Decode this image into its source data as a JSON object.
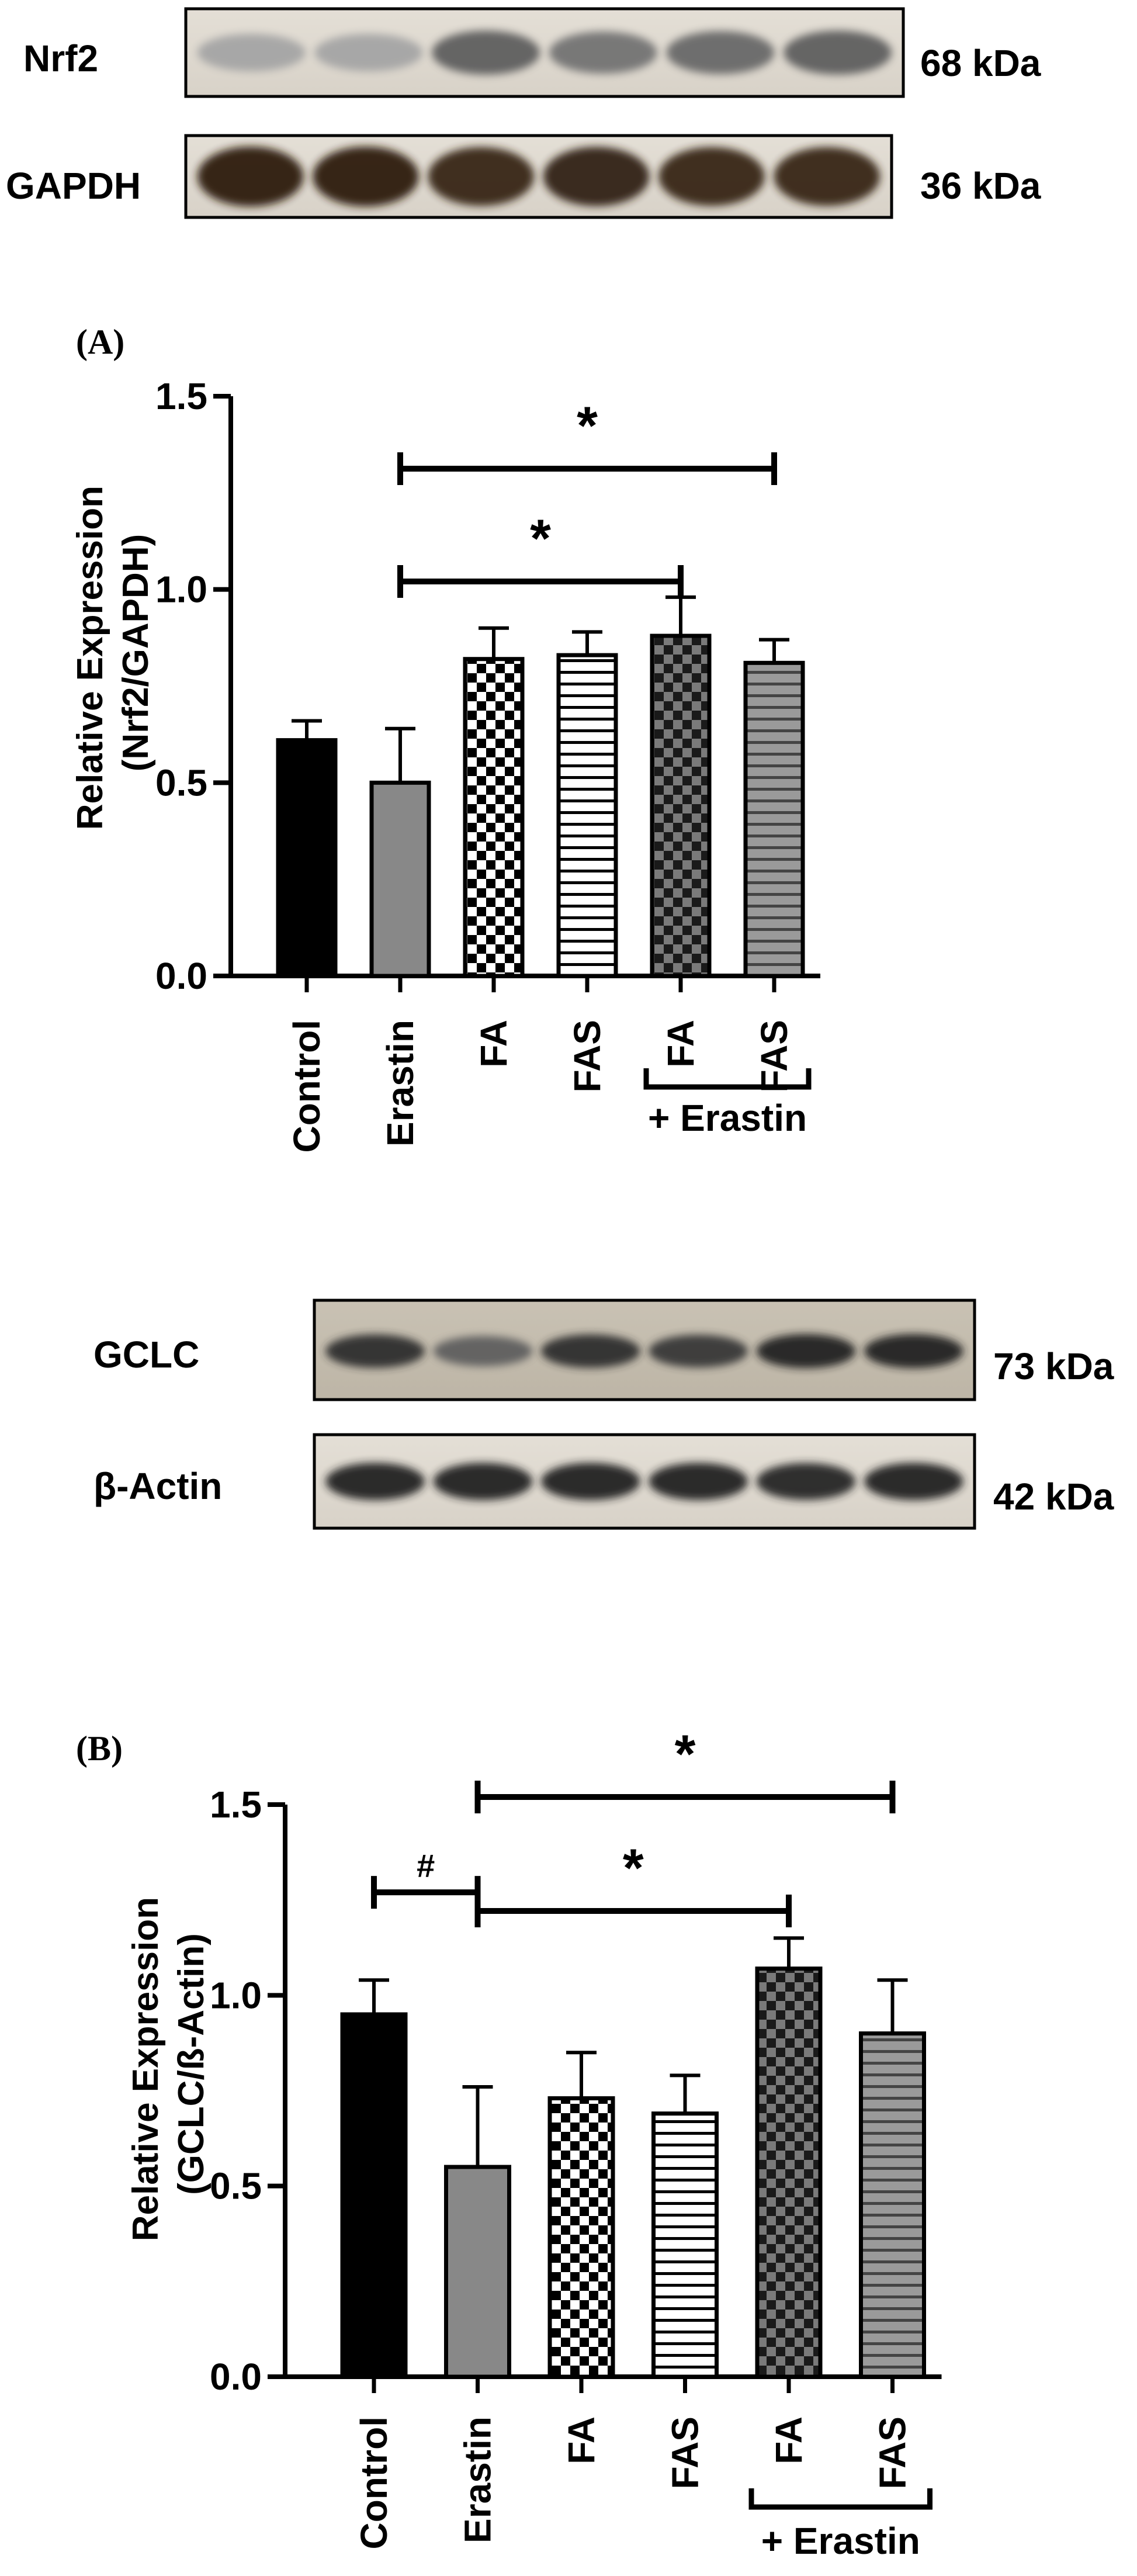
{
  "blots": [
    {
      "name": "nrf2-gapdh",
      "rows": [
        {
          "label": "Nrf2",
          "size": "68 kDa",
          "intensity": [
            0.25,
            0.25,
            0.6,
            0.5,
            0.55,
            0.6
          ]
        },
        {
          "label": "GAPDH",
          "size": "36 kDa",
          "intensity": [
            0.95,
            0.95,
            0.9,
            0.92,
            0.9,
            0.9
          ]
        }
      ]
    },
    {
      "name": "gclc-actin",
      "rows": [
        {
          "label": "GCLC",
          "size": "73 kDa",
          "intensity": [
            0.85,
            0.6,
            0.85,
            0.8,
            0.9,
            0.9
          ]
        },
        {
          "label": "β-Actin",
          "size": "42 kDa",
          "intensity": [
            0.9,
            0.9,
            0.9,
            0.9,
            0.88,
            0.9
          ]
        }
      ]
    }
  ],
  "chart_data": [
    {
      "type": "bar",
      "panel": "(A)",
      "ylabel_line1": "Relative Expression",
      "ylabel_line2": "(Nrf2/GAPDH)",
      "ylim": [
        0,
        1.5
      ],
      "yticks": [
        "0.0",
        "0.5",
        "1.0",
        "1.5"
      ],
      "categories": [
        "Control",
        "Erastin",
        "FA",
        "FAS",
        "FA",
        "FAS"
      ],
      "values": [
        0.61,
        0.5,
        0.82,
        0.83,
        0.88,
        0.81
      ],
      "errors": [
        0.05,
        0.14,
        0.08,
        0.06,
        0.1,
        0.06
      ],
      "patterns": [
        "solid-black",
        "solid-gray",
        "checker",
        "hstripe",
        "checker-dark",
        "hstripe-gray"
      ],
      "group_label": "+ Erastin",
      "significance": [
        {
          "from": 1,
          "to": 4,
          "label": "*"
        },
        {
          "from": 1,
          "to": 5,
          "label": "*"
        }
      ]
    },
    {
      "type": "bar",
      "panel": "(B)",
      "ylabel_line1": "Relative Expression",
      "ylabel_line2": "(GCLC/ß-Actin)",
      "ylim": [
        0,
        1.5
      ],
      "yticks": [
        "0.0",
        "0.5",
        "1.0",
        "1.5"
      ],
      "categories": [
        "Control",
        "Erastin",
        "FA",
        "FAS",
        "FA",
        "FAS"
      ],
      "values": [
        0.95,
        0.55,
        0.73,
        0.69,
        1.07,
        0.9
      ],
      "errors": [
        0.09,
        0.21,
        0.12,
        0.1,
        0.08,
        0.14
      ],
      "patterns": [
        "solid-black",
        "solid-gray",
        "checker",
        "hstripe",
        "checker-dark",
        "hstripe-gray"
      ],
      "group_label": "+ Erastin",
      "significance": [
        {
          "from": 0,
          "to": 1,
          "label": "#"
        },
        {
          "from": 1,
          "to": 4,
          "label": "*"
        },
        {
          "from": 1,
          "to": 5,
          "label": "*"
        }
      ]
    }
  ]
}
